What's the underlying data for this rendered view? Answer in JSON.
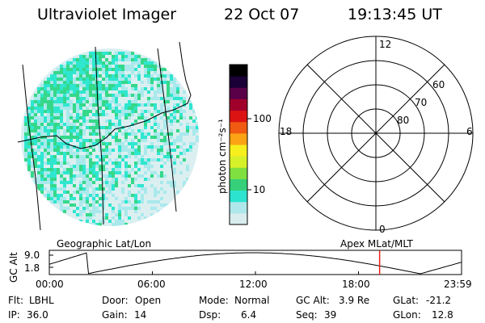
{
  "header": {
    "title": "Ultraviolet Imager",
    "date": "22 Oct 07",
    "time": "19:13:45 UT"
  },
  "image_panel": {
    "caption": "Geographic Lat/Lon",
    "colors": {
      "cyan": "#2fe6cf",
      "green": "#35d889",
      "lightblue": "#a9e9ec",
      "pale": "#dbeff1"
    }
  },
  "colorbar": {
    "unit_label": "photon cm⁻²s⁻¹",
    "tick_100": "100",
    "tick_10": "10",
    "colors": [
      "#d9ecee",
      "#aee8ea",
      "#2ce3d0",
      "#36d07a",
      "#7fe040",
      "#d6f02a",
      "#f6ee1d",
      "#fba314",
      "#f05a12",
      "#dc1313",
      "#a1002a",
      "#5a0048",
      "#1a0036",
      "#000000"
    ]
  },
  "polar_panel": {
    "caption": "Apex MLat/MLT",
    "mlt_labels": {
      "top": "12",
      "bottom": "0",
      "left": "18",
      "right": "6"
    },
    "mlat_labels": [
      "60",
      "70",
      "80"
    ]
  },
  "altitude_plot": {
    "ylabel": "GC Alt",
    "y_top": "9.0",
    "y_bottom": "1.8",
    "x_ticks": [
      "00:00",
      "06:00",
      "12:00",
      "18:00",
      "23:59"
    ],
    "current_time_hours": 19.23,
    "marker_color": "#e8231b"
  },
  "status": {
    "row1": [
      {
        "label": "Flt:",
        "value": "LBHL"
      },
      {
        "label": "Door:",
        "value": "Open"
      },
      {
        "label": "Mode:",
        "value": "Normal"
      },
      {
        "label": "GC Alt:",
        "value": "3.9 Re"
      },
      {
        "label": "GLat:",
        "value": "-21.2"
      }
    ],
    "row2": [
      {
        "label": "IP:",
        "value": "36.0"
      },
      {
        "label": "Gain:",
        "value": "14"
      },
      {
        "label": "Dsp:",
        "value": "6.4"
      },
      {
        "label": "Seq:",
        "value": "39"
      },
      {
        "label": "GLon:",
        "value": "12.8"
      }
    ]
  }
}
